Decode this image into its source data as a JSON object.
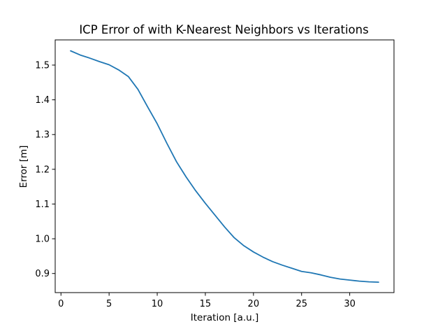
{
  "chart_data": {
    "type": "line",
    "title": "ICP Error of with K-Nearest Neighbors vs Iterations",
    "xlabel": "Iteration [a.u.]",
    "ylabel": "Error [m]",
    "xlim": [
      -0.6,
      34.6
    ],
    "ylim": [
      0.845,
      1.5725
    ],
    "xticks": [
      0,
      5,
      10,
      15,
      20,
      25,
      30
    ],
    "yticks": [
      0.9,
      1.0,
      1.1,
      1.2,
      1.3,
      1.4,
      1.5
    ],
    "grid": false,
    "line_color": "#1f77b4",
    "series": [
      {
        "x": [
          1,
          2,
          3,
          4,
          5,
          6,
          7,
          8,
          9,
          10,
          11,
          12,
          13,
          14,
          15,
          16,
          17,
          18,
          19,
          20,
          21,
          22,
          23,
          24,
          25,
          26,
          27,
          28,
          29,
          30,
          31,
          32,
          33
        ],
        "values": [
          1.541,
          1.529,
          1.52,
          1.51,
          1.501,
          1.486,
          1.467,
          1.43,
          1.38,
          1.331,
          1.275,
          1.222,
          1.178,
          1.138,
          1.102,
          1.068,
          1.034,
          1.003,
          0.98,
          0.962,
          0.947,
          0.934,
          0.924,
          0.915,
          0.906,
          0.902,
          0.896,
          0.889,
          0.884,
          0.881,
          0.878,
          0.876,
          0.875
        ]
      }
    ]
  }
}
